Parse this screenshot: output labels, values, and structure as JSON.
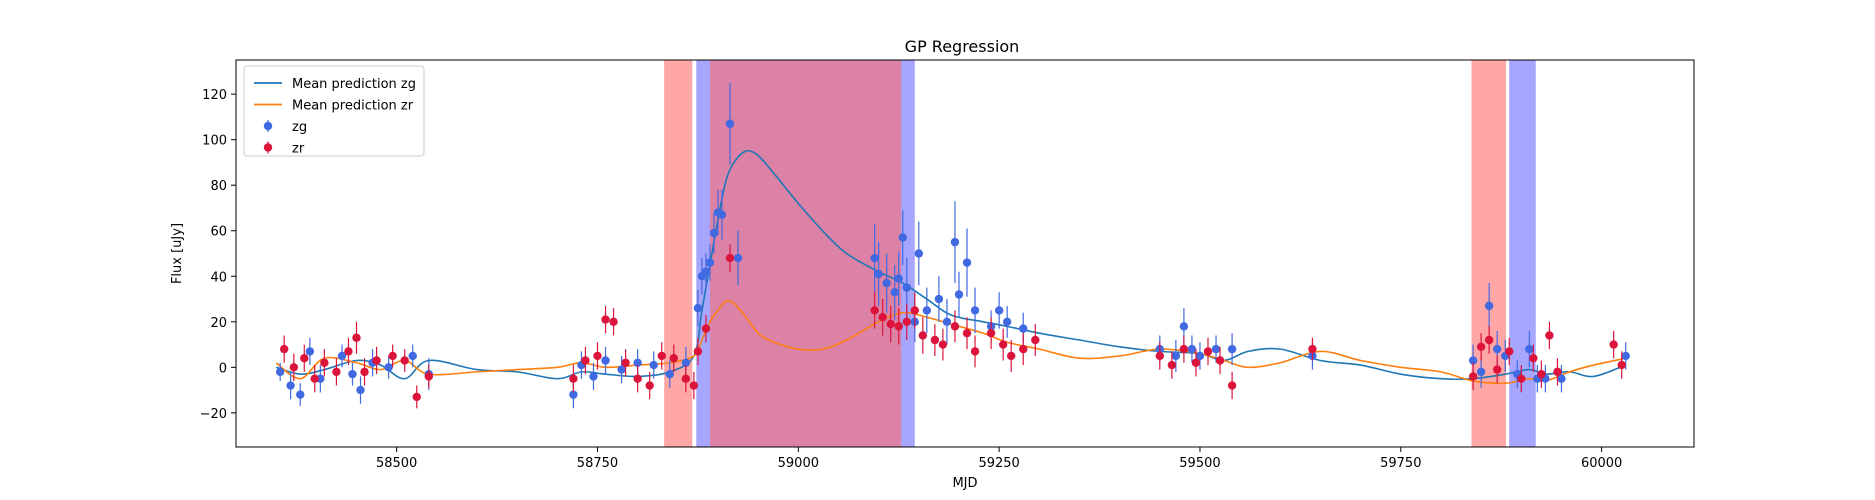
{
  "chart_data": {
    "type": "line",
    "title": "GP Regression",
    "xlabel": "MJD",
    "ylabel": "Flux [uJy]",
    "xlim": [
      58300,
      60115
    ],
    "ylim": [
      -35,
      135
    ],
    "xticks": [
      58500,
      58750,
      59000,
      59250,
      59500,
      59750,
      60000
    ],
    "yticks": [
      -20,
      0,
      20,
      40,
      60,
      80,
      100,
      120
    ],
    "grid": false,
    "legend_position": "top-left",
    "colors": {
      "zg_line": "#1f77b4",
      "zr_line": "#ff7f0e",
      "zg_points": "#4169e1",
      "zr_points": "#dc143c",
      "red_band": "#ff6b6b",
      "blue_band": "#6b6bff",
      "overlap_band": "#c060a0"
    },
    "bands": [
      {
        "color": "red",
        "x0": 58833,
        "x1": 58868
      },
      {
        "color": "blue",
        "x0": 58873,
        "x1": 59145
      },
      {
        "color": "red",
        "x0": 58890,
        "x1": 59128
      },
      {
        "color": "red",
        "x0": 59838,
        "x1": 59881
      },
      {
        "color": "blue",
        "x0": 59885,
        "x1": 59918
      }
    ],
    "series": [
      {
        "name": "Mean prediction zg",
        "kind": "line",
        "x": [
          58350,
          58380,
          58410,
          58450,
          58480,
          58510,
          58540,
          58600,
          58650,
          58700,
          58730,
          58760,
          58800,
          58840,
          58870,
          58880,
          58890,
          58900,
          58910,
          58920,
          58935,
          58950,
          58970,
          59000,
          59030,
          59060,
          59100,
          59130,
          59160,
          59190,
          59230,
          59260,
          59300,
          59350,
          59400,
          59450,
          59500,
          59530,
          59560,
          59600,
          59650,
          59700,
          59750,
          59800,
          59840,
          59880,
          59910,
          59930,
          59960,
          59990,
          60030
        ],
        "y": [
          0,
          -3,
          -1,
          3,
          1,
          -5,
          3,
          -1,
          -2,
          -5,
          -2,
          -3,
          -4,
          -2,
          5,
          25,
          45,
          65,
          82,
          90,
          95,
          93,
          85,
          72,
          60,
          50,
          42,
          37,
          30,
          23,
          20,
          18,
          15,
          12,
          9,
          7,
          6,
          3,
          7,
          8,
          3,
          1,
          -3,
          -5,
          -5,
          -3,
          -1,
          -3,
          -2,
          -4,
          1
        ]
      },
      {
        "name": "Mean prediction zr",
        "kind": "line",
        "x": [
          58350,
          58380,
          58410,
          58450,
          58480,
          58510,
          58540,
          58600,
          58650,
          58700,
          58730,
          58760,
          58800,
          58840,
          58870,
          58880,
          58890,
          58900,
          58910,
          58920,
          58935,
          58950,
          58970,
          59000,
          59030,
          59060,
          59100,
          59130,
          59160,
          59190,
          59230,
          59260,
          59300,
          59350,
          59400,
          59450,
          59500,
          59530,
          59560,
          59600,
          59650,
          59700,
          59750,
          59800,
          59840,
          59880,
          59910,
          59930,
          59960,
          59990,
          60030
        ],
        "y": [
          2,
          -5,
          4,
          2,
          -1,
          3,
          -3,
          -2,
          -1,
          0,
          2,
          0,
          1,
          2,
          5,
          12,
          20,
          25,
          29,
          28,
          22,
          15,
          11,
          8,
          8,
          12,
          20,
          24,
          22,
          19,
          15,
          11,
          8,
          4,
          5,
          8,
          6,
          3,
          0,
          2,
          7,
          3,
          0,
          -2,
          -6,
          -7,
          -5,
          -6,
          -2,
          1,
          4
        ]
      },
      {
        "name": "zg",
        "kind": "points",
        "x": [
          58355,
          58368,
          58380,
          58392,
          58405,
          58432,
          58445,
          58455,
          58470,
          58490,
          58520,
          58540,
          58720,
          58730,
          58745,
          58760,
          58780,
          58800,
          58820,
          58840,
          58860,
          58875,
          58880,
          58885,
          58890,
          58895,
          58900,
          58905,
          58915,
          58925,
          59095,
          59100,
          59110,
          59120,
          59125,
          59130,
          59135,
          59145,
          59150,
          59160,
          59175,
          59185,
          59195,
          59200,
          59210,
          59220,
          59240,
          59250,
          59260,
          59280,
          59450,
          59470,
          59480,
          59490,
          59500,
          59520,
          59540,
          59640,
          59840,
          59850,
          59860,
          59870,
          59880,
          59895,
          59910,
          59920,
          59930,
          59950,
          60030
        ],
        "y": [
          -2,
          -8,
          -12,
          7,
          -5,
          5,
          -3,
          -10,
          2,
          0,
          5,
          -3,
          -12,
          1,
          -4,
          3,
          -1,
          2,
          1,
          -3,
          2,
          26,
          40,
          42,
          46,
          59,
          68,
          67,
          107,
          48,
          48,
          41,
          37,
          33,
          39,
          57,
          35,
          20,
          50,
          25,
          30,
          20,
          55,
          32,
          46,
          25,
          18,
          25,
          20,
          17,
          8,
          5,
          18,
          8,
          5,
          8,
          8,
          5,
          3,
          -2,
          27,
          8,
          5,
          -3,
          8,
          -5,
          -5,
          -5,
          5
        ],
        "err": [
          4,
          6,
          5,
          6,
          6,
          5,
          5,
          6,
          6,
          5,
          5,
          7,
          6,
          6,
          6,
          6,
          6,
          6,
          6,
          6,
          7,
          8,
          8,
          8,
          8,
          9,
          10,
          11,
          18,
          12,
          15,
          14,
          13,
          12,
          12,
          12,
          13,
          9,
          14,
          10,
          10,
          10,
          18,
          10,
          15,
          10,
          7,
          8,
          7,
          7,
          6,
          7,
          8,
          6,
          6,
          6,
          7,
          6,
          7,
          7,
          10,
          8,
          7,
          6,
          8,
          6,
          6,
          6,
          6
        ]
      },
      {
        "name": "zr",
        "kind": "points",
        "x": [
          58360,
          58372,
          58385,
          58398,
          58410,
          58425,
          58440,
          58450,
          58460,
          58475,
          58495,
          58510,
          58525,
          58540,
          58720,
          58735,
          58750,
          58760,
          58770,
          58785,
          58800,
          58815,
          58830,
          58845,
          58860,
          58870,
          58875,
          58885,
          58915,
          59095,
          59105,
          59115,
          59125,
          59135,
          59145,
          59155,
          59170,
          59180,
          59195,
          59210,
          59220,
          59240,
          59255,
          59265,
          59280,
          59295,
          59450,
          59465,
          59480,
          59495,
          59510,
          59525,
          59540,
          59640,
          59840,
          59850,
          59860,
          59870,
          59885,
          59900,
          59915,
          59925,
          59935,
          59945,
          60015,
          60025
        ],
        "y": [
          8,
          0,
          4,
          -5,
          2,
          -2,
          7,
          13,
          -2,
          3,
          5,
          3,
          -13,
          -4,
          -5,
          3,
          5,
          21,
          20,
          2,
          -5,
          -8,
          5,
          4,
          -5,
          -8,
          7,
          17,
          48,
          25,
          22,
          19,
          18,
          20,
          25,
          14,
          12,
          10,
          18,
          15,
          7,
          15,
          10,
          5,
          8,
          12,
          5,
          1,
          8,
          2,
          7,
          3,
          -8,
          8,
          -4,
          9,
          12,
          -1,
          7,
          -5,
          4,
          -3,
          14,
          -2,
          10,
          1
        ],
        "err": [
          6,
          6,
          6,
          6,
          6,
          6,
          6,
          7,
          6,
          6,
          5,
          5,
          5,
          5,
          6,
          6,
          6,
          6,
          6,
          6,
          6,
          6,
          6,
          6,
          6,
          6,
          6,
          6,
          6,
          8,
          8,
          8,
          8,
          8,
          8,
          8,
          7,
          7,
          7,
          7,
          7,
          7,
          7,
          7,
          7,
          7,
          6,
          6,
          6,
          6,
          6,
          6,
          6,
          5,
          6,
          6,
          6,
          6,
          6,
          6,
          6,
          6,
          6,
          6,
          6,
          6
        ]
      }
    ],
    "legend": [
      {
        "label": "Mean prediction zg",
        "kind": "line",
        "color": "#1f77b4"
      },
      {
        "label": "Mean prediction zr",
        "kind": "line",
        "color": "#ff7f0e"
      },
      {
        "label": "zg",
        "kind": "marker",
        "color": "#4169e1"
      },
      {
        "label": "zr",
        "kind": "marker",
        "color": "#dc143c"
      }
    ]
  }
}
